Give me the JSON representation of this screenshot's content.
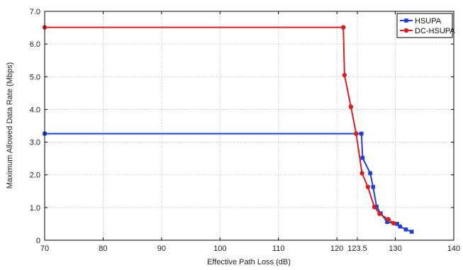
{
  "chart_data": {
    "type": "line",
    "title": "",
    "xlabel": "Effective Path Loss (dB)",
    "ylabel": "Maximum Allowed Data Rate (Mbps)",
    "xlim": [
      70,
      140
    ],
    "ylim": [
      0,
      7
    ],
    "grid": true,
    "legend_position": "top-right",
    "x_ticks": [
      70,
      80,
      90,
      100,
      110,
      120,
      123.5,
      130,
      140
    ],
    "x_tick_labels": [
      "70",
      "80",
      "90",
      "100",
      "110",
      "120",
      "123.5",
      "130",
      "140"
    ],
    "y_ticks": [
      0,
      1,
      2,
      3,
      4,
      5,
      6,
      7
    ],
    "y_tick_labels": [
      "0",
      "1.0",
      "2.0",
      "3.0",
      "4.0",
      "5.0",
      "6.0",
      "7.0"
    ],
    "series": [
      {
        "name": "HSUPA",
        "color": "#1f3fd6",
        "marker": "square",
        "x": [
          70,
          124.2,
          124.4,
          125.7,
          126.2,
          126.8,
          127.5,
          128.6,
          130.3,
          130.8,
          131.8,
          132.8
        ],
        "y": [
          3.26,
          3.26,
          2.52,
          2.05,
          1.63,
          1.02,
          0.82,
          0.56,
          0.5,
          0.42,
          0.33,
          0.26
        ]
      },
      {
        "name": "DC-HSUPA",
        "color": "#d81e1e",
        "marker": "circle",
        "x": [
          70,
          121.1,
          121.3,
          122.4,
          123.3,
          124.3,
          125.3,
          126.4,
          127.3,
          128.8,
          129.7
        ],
        "y": [
          6.51,
          6.51,
          5.05,
          4.08,
          3.26,
          2.05,
          1.63,
          1.02,
          0.81,
          0.64,
          0.52
        ]
      }
    ]
  }
}
